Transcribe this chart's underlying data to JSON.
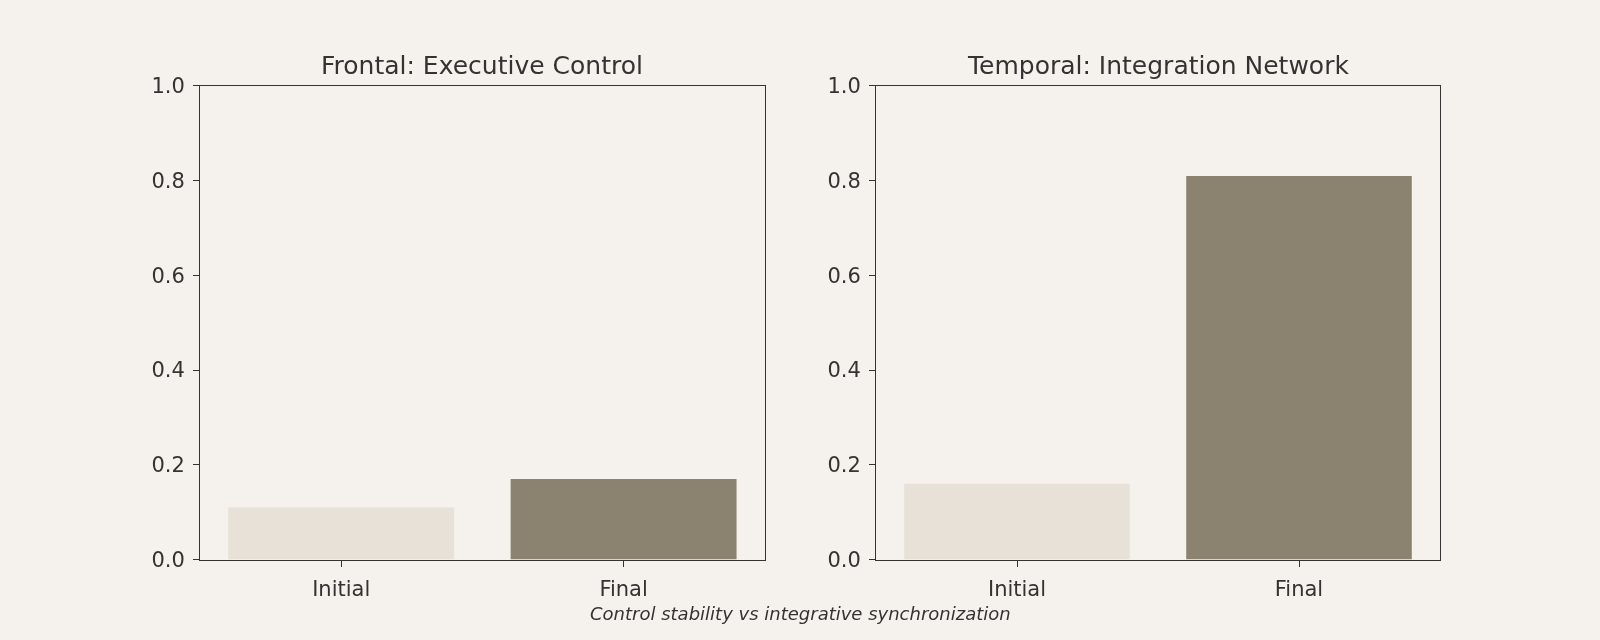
{
  "chart_data": [
    {
      "type": "bar",
      "title": "Frontal: Executive Control",
      "categories": [
        "Initial",
        "Final"
      ],
      "values": [
        0.11,
        0.17
      ],
      "colors": [
        "#e8e1d8",
        "#8c8270"
      ],
      "ylim": [
        0,
        1
      ],
      "yticks": [
        {
          "value": 0,
          "label": "0.0"
        },
        {
          "value": 0.2,
          "label": "0.2"
        },
        {
          "value": 0.4,
          "label": "0.4"
        },
        {
          "value": 0.6,
          "label": "0.6"
        },
        {
          "value": 0.8,
          "label": "0.8"
        },
        {
          "value": 1,
          "label": "1.0"
        }
      ],
      "grid": false,
      "annotations": [
        "Control stability vs integrative synchronization"
      ]
    },
    {
      "type": "bar",
      "title": "Temporal: Integration Network",
      "categories": [
        "Initial",
        "Final"
      ],
      "values": [
        0.16,
        0.81
      ],
      "colors": [
        "#e8e1d8",
        "#8c8270"
      ],
      "ylim": [
        0,
        1
      ],
      "yticks": [
        {
          "value": 0,
          "label": "0.0"
        },
        {
          "value": 0.2,
          "label": "0.2"
        },
        {
          "value": 0.4,
          "label": "0.4"
        },
        {
          "value": 0.6,
          "label": "0.6"
        },
        {
          "value": 0.8,
          "label": "0.8"
        },
        {
          "value": 1,
          "label": "1.0"
        }
      ],
      "grid": false
    }
  ]
}
